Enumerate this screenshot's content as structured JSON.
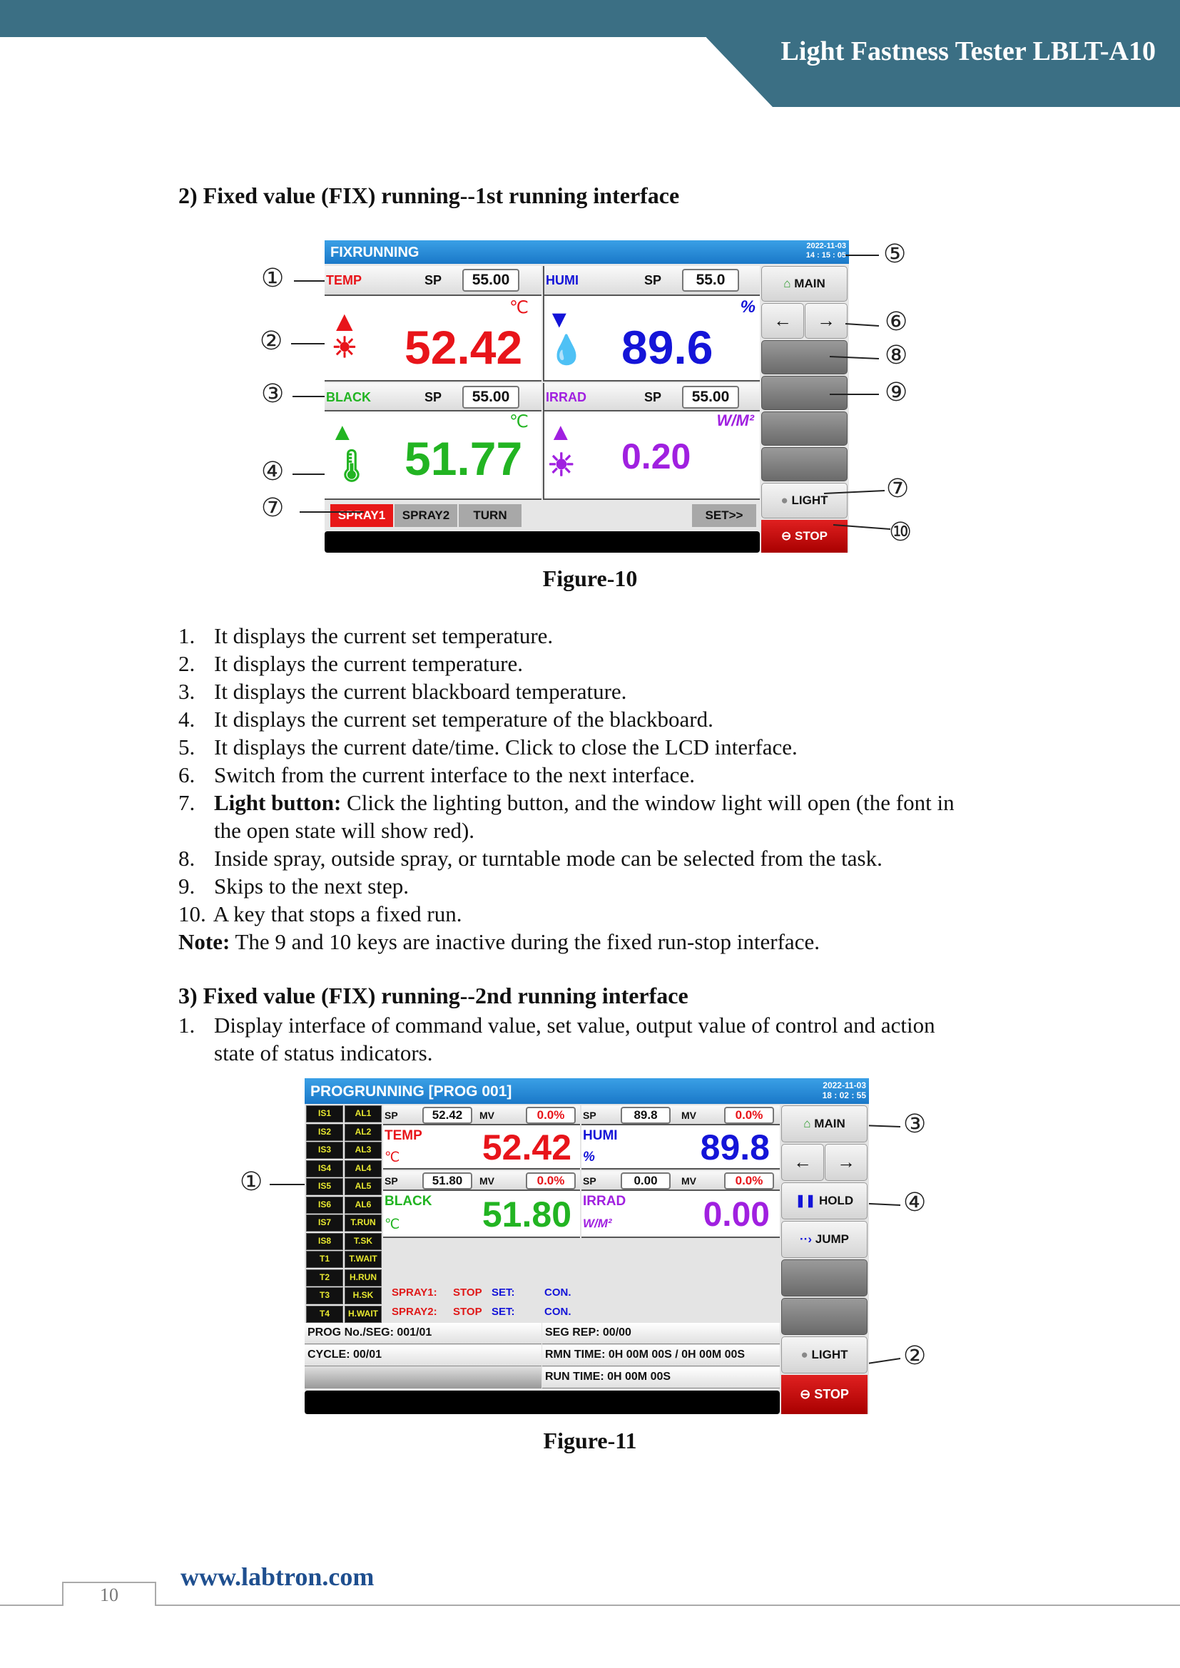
{
  "header": {
    "title": "Light Fastness Tester LBLT-A10"
  },
  "section2": {
    "heading": "2)  Fixed value (FIX) running--1st running interface"
  },
  "fig10": {
    "title": "FIXRUNNING",
    "date": "2022-11-03",
    "time": "14 : 15 : 05",
    "temp": {
      "label": "TEMP",
      "sp_label": "SP",
      "sp": "55.00",
      "value": "52.42",
      "unit": "℃"
    },
    "humi": {
      "label": "HUMI",
      "sp_label": "SP",
      "sp": "55.0",
      "value": "89.6",
      "unit": "%"
    },
    "black": {
      "label": "BLACK",
      "sp_label": "SP",
      "sp": "55.00",
      "value": "51.77",
      "unit": "℃"
    },
    "irrad": {
      "label": "IRRAD",
      "sp_label": "SP",
      "sp": "55.00",
      "value": "0.20",
      "unit": "W/M²"
    },
    "buttons": {
      "spray1": "SPRAY1",
      "spray2": "SPRAY2",
      "turn": "TURN",
      "set": "SET>>",
      "main": "MAIN",
      "prev": "←",
      "next": "→",
      "light": "LIGHT",
      "stop": "STOP"
    },
    "callouts": [
      "①",
      "②",
      "③",
      "④",
      "⑤",
      "⑥",
      "⑦",
      "⑧",
      "⑨",
      "⑦",
      "⑩"
    ],
    "caption": "Figure-10",
    "colors": {
      "temp": "#e8141a",
      "humi": "#1414d8",
      "black": "#22b422",
      "irrad": "#a020e0",
      "stop": "#c81010"
    }
  },
  "list2": [
    {
      "n": "1.",
      "text": "It displays the current set temperature."
    },
    {
      "n": "2.",
      "text": "It displays the current temperature."
    },
    {
      "n": "3.",
      "text": "It displays the current blackboard temperature."
    },
    {
      "n": "4.",
      "text": "It displays the current set temperature of the blackboard."
    },
    {
      "n": "5.",
      "text": "It displays the current date/time. Click to close the LCD interface."
    },
    {
      "n": "6.",
      "text": "Switch from the current interface to the next interface."
    },
    {
      "n": "7.",
      "bold": "Light button:",
      "text": " Click the lighting button, and the window light will open (the font in",
      "cont": "the open state will show red)."
    },
    {
      "n": "8.",
      "text": "Inside spray, outside spray, or turntable mode can be selected from the task."
    },
    {
      "n": "9.",
      "text": "Skips to the next step."
    },
    {
      "n": "10.",
      "text": "A key that stops a fixed run."
    }
  ],
  "note": {
    "bold": "Note:",
    "text": " The 9 and 10 keys are inactive during the fixed run-stop interface."
  },
  "section3": {
    "heading": "3)  Fixed value (FIX) running--2nd running interface",
    "item": {
      "n": "1.",
      "text": "Display interface of command value, set value, output value of control and action",
      "cont": "state of status indicators."
    }
  },
  "fig11": {
    "title": "PROGRUNNING [PROG 001]",
    "date": "2022-11-03",
    "time": "18 : 02 : 55",
    "status_left": [
      "IS1",
      "IS2",
      "IS3",
      "IS4",
      "IS5",
      "IS6",
      "IS7",
      "IS8",
      "T1",
      "T2",
      "T3",
      "T4"
    ],
    "status_right": [
      "AL1",
      "AL2",
      "AL3",
      "AL4",
      "AL5",
      "AL6",
      "T.RUN",
      "T.SK",
      "T.WAIT",
      "H.RUN",
      "H.SK",
      "H.WAIT"
    ],
    "sp_label": "SP",
    "mv_label": "MV",
    "temp": {
      "label": "TEMP",
      "sp": "52.42",
      "mv": "0.0%",
      "value": "52.42",
      "unit": "℃"
    },
    "humi": {
      "label": "HUMI",
      "sp": "89.8",
      "mv": "0.0%",
      "value": "89.8",
      "unit": "%"
    },
    "black": {
      "label": "BLACK",
      "sp": "51.80",
      "mv": "0.0%",
      "value": "51.80",
      "unit": "℃"
    },
    "irrad": {
      "label": "IRRAD",
      "sp": "0.00",
      "mv": "0.0%",
      "value": "0.00",
      "unit": "W/M²"
    },
    "spray1": {
      "label": "SPRAY1:",
      "state": "STOP",
      "set": "SET:",
      "mode": "CON."
    },
    "spray2": {
      "label": "SPRAY2:",
      "state": "STOP",
      "set": "SET:",
      "mode": "CON."
    },
    "info": {
      "prog": "PROG No./SEG: 001/01",
      "segrep": "SEG REP: 00/00",
      "cycle": "CYCLE: 00/01",
      "rmn": "RMN TIME: 0H 00M 00S / 0H 00M 00S",
      "run": "RUN TIME: 0H 00M 00S"
    },
    "buttons": {
      "main": "MAIN",
      "prev": "←",
      "next": "→",
      "hold": "HOLD",
      "jump": "JUMP",
      "light": "LIGHT",
      "stop": "STOP"
    },
    "callouts": [
      "①",
      "③",
      "④",
      "②"
    ],
    "caption": "Figure-11"
  },
  "footer": {
    "url": "www.labtron.com",
    "page": "10"
  }
}
